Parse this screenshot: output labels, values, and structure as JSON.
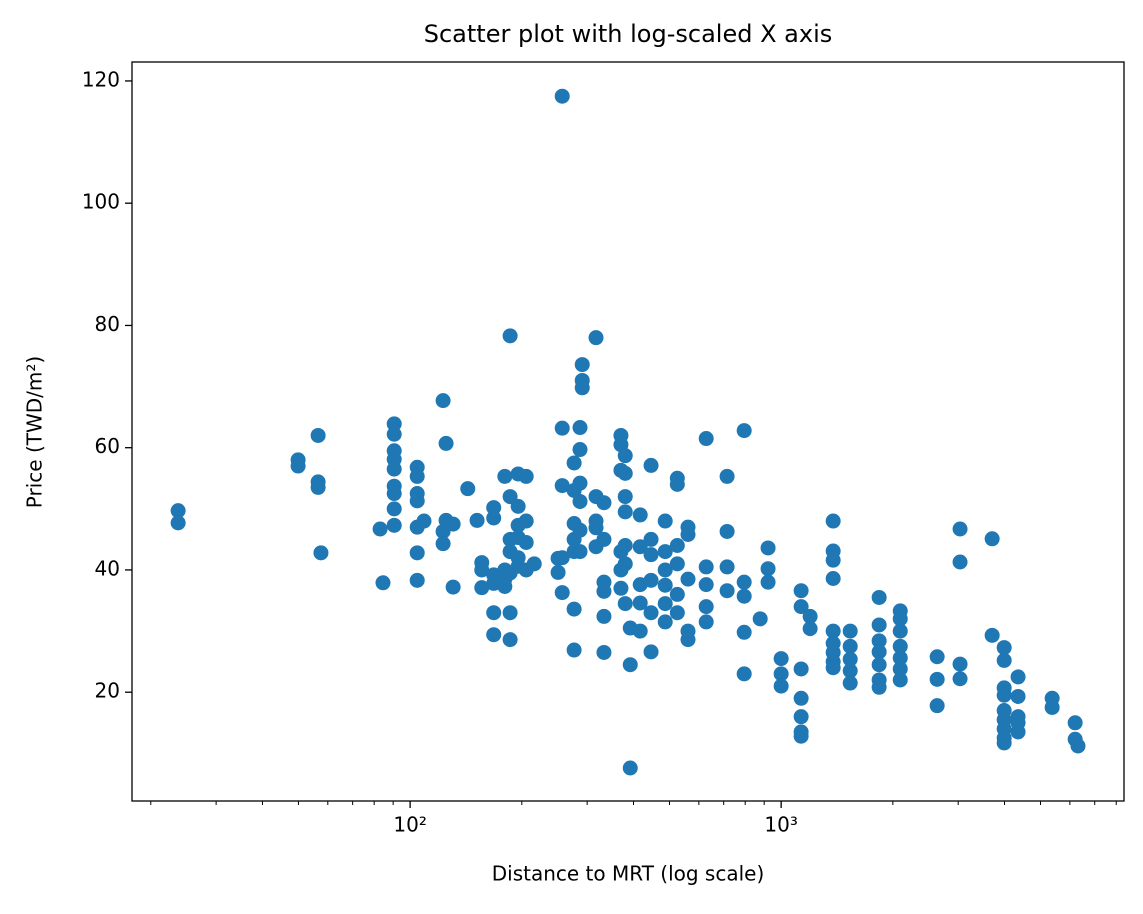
{
  "chart_data": {
    "type": "scatter",
    "title": "Scatter plot with log-scaled X axis",
    "xlabel": "Distance to MRT (log scale)",
    "ylabel": "Price (TWD/m²)",
    "xscale": "log",
    "xlim": [
      17.8,
      8395
    ],
    "ylim": [
      2.2,
      123.1
    ],
    "xticks": [
      {
        "value": 100,
        "label": "10²"
      },
      {
        "value": 1000,
        "label": "10³"
      }
    ],
    "xminorticks": [
      20,
      30,
      40,
      50,
      60,
      70,
      80,
      90,
      200,
      300,
      400,
      500,
      600,
      700,
      800,
      900,
      2000,
      3000,
      4000,
      5000,
      6000,
      7000,
      8000
    ],
    "yticks": [
      20,
      40,
      60,
      80,
      100,
      120
    ],
    "grid": false,
    "series": [
      {
        "color": "#1f77b4",
        "x": [
          23.7,
          23.7,
          49.9,
          49.9,
          56.5,
          56.5,
          56.5,
          57.5,
          83,
          84.5,
          90.6,
          90.6,
          90.6,
          90.6,
          90.6,
          90.6,
          90.6,
          90.6,
          90.6,
          104.5,
          104.5,
          104.5,
          104.5,
          104.5,
          104.5,
          104.5,
          109,
          122.7,
          122.7,
          122.7,
          125,
          125,
          130.6,
          130.6,
          143,
          151.5,
          156,
          156,
          156,
          168,
          168,
          168,
          168,
          168,
          168,
          180,
          180,
          180,
          180,
          186,
          186,
          186,
          186,
          186,
          186,
          186,
          195.5,
          195.5,
          195.5,
          195.5,
          195.5,
          195.5,
          205.5,
          205.5,
          205.5,
          205.5,
          216,
          250.5,
          250.5,
          257,
          257,
          257,
          257,
          257,
          276.7,
          276.7,
          276.7,
          276.7,
          276.7,
          276.7,
          276.7,
          287,
          287,
          287,
          287,
          287,
          287,
          291,
          291,
          291,
          317,
          317,
          317,
          317,
          317,
          333,
          333,
          333,
          333,
          333,
          333,
          370,
          370,
          370,
          370,
          370,
          370,
          380,
          380,
          380,
          380,
          380,
          380,
          380,
          392,
          392,
          392,
          417,
          417,
          417,
          417,
          417,
          446,
          446,
          446,
          446,
          446,
          446,
          487,
          487,
          487,
          487,
          487,
          487,
          525,
          525,
          525,
          525,
          525,
          525,
          561,
          561,
          561,
          561,
          561,
          628,
          628,
          628,
          628,
          628,
          715,
          715,
          715,
          715,
          795,
          795,
          795,
          795,
          795,
          878,
          922,
          922,
          922,
          1000,
          1000,
          1000,
          1132,
          1132,
          1132,
          1132,
          1132,
          1132,
          1132,
          1197,
          1197,
          1381,
          1381,
          1381,
          1381,
          1381,
          1381,
          1381,
          1381,
          1381,
          1535,
          1535,
          1535,
          1535,
          1535,
          1837,
          1837,
          1837,
          1837,
          1837,
          1837,
          1837,
          2094,
          2094,
          2094,
          2094,
          2094,
          2094,
          2094,
          2633,
          2633,
          2633,
          3035,
          3035,
          3035,
          3035,
          3704,
          3704,
          3991,
          3991,
          3991,
          3991,
          3991,
          3991,
          3991,
          3991,
          3991,
          4350,
          4350,
          4350,
          4350,
          4350,
          5375,
          5375,
          6200,
          6200,
          6310
        ],
        "values": [
          49.7,
          47.7,
          58,
          57,
          62,
          54.4,
          53.5,
          42.8,
          46.7,
          37.9,
          63.9,
          62.2,
          59.5,
          58.1,
          56.5,
          53.7,
          52.5,
          50,
          47.3,
          56.8,
          55.3,
          52.5,
          51.3,
          47,
          42.8,
          38.3,
          48,
          67.7,
          46.3,
          44.3,
          60.7,
          48.1,
          37.2,
          47.5,
          53.3,
          48.1,
          41.2,
          40,
          37.1,
          50.2,
          48.5,
          39.2,
          37.8,
          33,
          29.4,
          55.3,
          40,
          38.5,
          37.3,
          78.3,
          52,
          45,
          43,
          39.5,
          33,
          28.6,
          55.7,
          50.4,
          47.3,
          45.3,
          42,
          40.6,
          55.3,
          48,
          44.5,
          40,
          41,
          41.9,
          39.6,
          117.5,
          63.2,
          53.8,
          42,
          36.3,
          57.5,
          53,
          47.6,
          45,
          43,
          33.6,
          26.9,
          63.3,
          59.7,
          54.2,
          51.2,
          46.5,
          43,
          73.6,
          71,
          69.8,
          78,
          52,
          48,
          46.9,
          43.8,
          51,
          45,
          38,
          36.5,
          32.4,
          26.5,
          62,
          60.5,
          56.3,
          43,
          40,
          37,
          58.7,
          55.8,
          52,
          49.5,
          44,
          41,
          34.5,
          30.5,
          24.5,
          7.6,
          49,
          43.8,
          37.6,
          34.6,
          30,
          57.1,
          45,
          42.5,
          38.3,
          33,
          26.6,
          48,
          43,
          40,
          37.5,
          34.5,
          31.5,
          55,
          54,
          44,
          41,
          36,
          33,
          47,
          45.8,
          38.5,
          30,
          28.6,
          61.5,
          40.5,
          37.6,
          34,
          31.5,
          55.3,
          46.3,
          40.5,
          36.6,
          62.8,
          38,
          35.7,
          29.8,
          23,
          32,
          43.6,
          40.2,
          38,
          25.5,
          23,
          21,
          36.6,
          34,
          23.8,
          19,
          16,
          13.5,
          12.8,
          32.4,
          30.4,
          48,
          43.1,
          41.6,
          38.6,
          30,
          28,
          26.5,
          25,
          24,
          30,
          27.5,
          25.4,
          23.5,
          21.5,
          35.5,
          31,
          28.4,
          26.6,
          24.5,
          22,
          20.8,
          33.3,
          32,
          30,
          27.5,
          25.6,
          23.8,
          22,
          25.8,
          22.1,
          17.8,
          46.7,
          41.3,
          24.6,
          22.2,
          45.1,
          29.3,
          27.3,
          25.2,
          20.7,
          19.5,
          17,
          15.5,
          14,
          12.5,
          11.7,
          22.5,
          19.3,
          16,
          15,
          13.5,
          19,
          17.5,
          15,
          12.3,
          11.2
        ]
      }
    ]
  }
}
